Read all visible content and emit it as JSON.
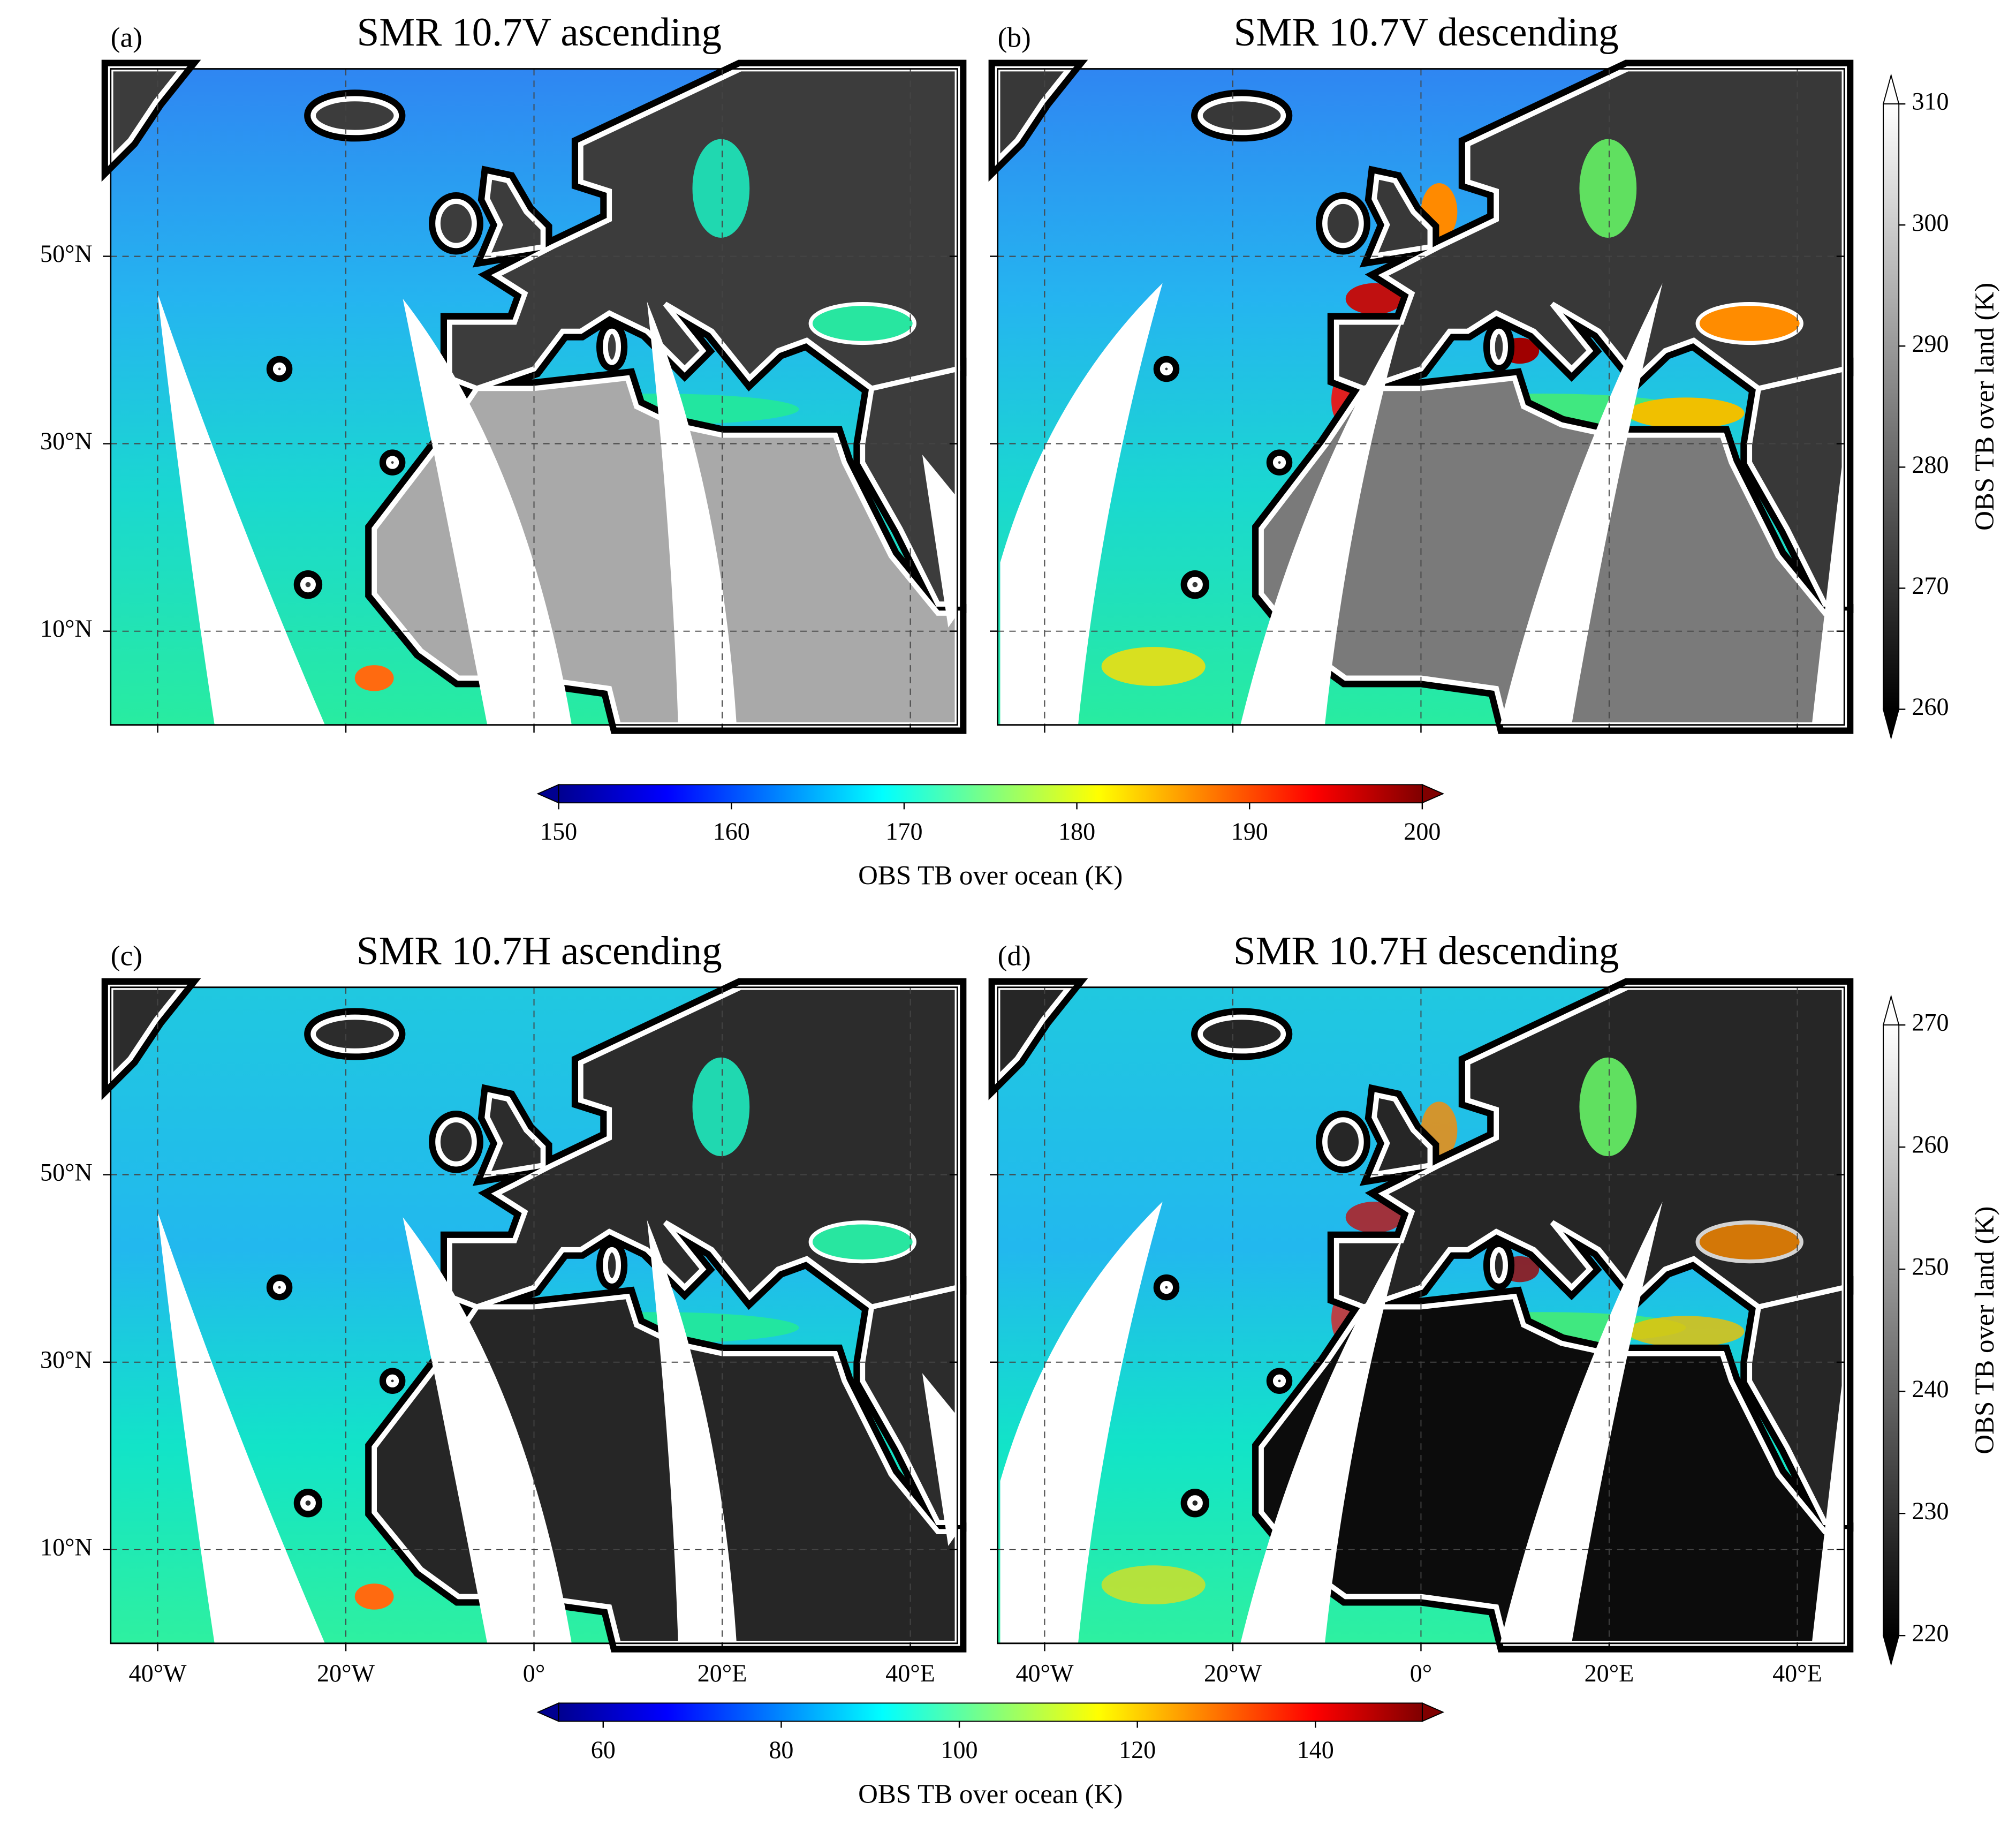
{
  "panels": [
    {
      "label": "(a)",
      "title": "SMR 10.7V ascending"
    },
    {
      "label": "(b)",
      "title": "SMR 10.7V descending"
    },
    {
      "label": "(c)",
      "title": "SMR 10.7H ascending"
    },
    {
      "label": "(d)",
      "title": "SMR 10.7H descending"
    }
  ],
  "map": {
    "xlim": [
      -45,
      45
    ],
    "ylim": [
      0,
      70
    ],
    "xticks": [
      {
        "value": -40,
        "label": "40°W"
      },
      {
        "value": -20,
        "label": "20°W"
      },
      {
        "value": 0,
        "label": "0°"
      },
      {
        "value": 20,
        "label": "20°E"
      },
      {
        "value": 40,
        "label": "40°E"
      }
    ],
    "yticks": [
      {
        "value": 10,
        "label": "10°N"
      },
      {
        "value": 30,
        "label": "30°N"
      },
      {
        "value": 50,
        "label": "50°N"
      }
    ],
    "grid": true
  },
  "colorbars": [
    {
      "label": "OBS TB over ocean (K)",
      "colormap": "jet",
      "lim": [
        150,
        200
      ],
      "ticks": [
        150,
        160,
        170,
        180,
        190,
        200
      ]
    },
    {
      "label": "OBS TB over land (K)",
      "colormap": "gray",
      "lim": [
        260,
        310
      ],
      "ticks": [
        260,
        270,
        280,
        290,
        300,
        310
      ]
    },
    {
      "label": "OBS TB over ocean (K)",
      "colormap": "jet",
      "lim": [
        55,
        152
      ],
      "ticks": [
        60,
        80,
        100,
        120,
        140
      ]
    },
    {
      "label": "OBS TB over land (K)",
      "colormap": "gray",
      "lim": [
        220,
        270
      ],
      "ticks": [
        220,
        230,
        240,
        250,
        260,
        270
      ]
    }
  ]
}
